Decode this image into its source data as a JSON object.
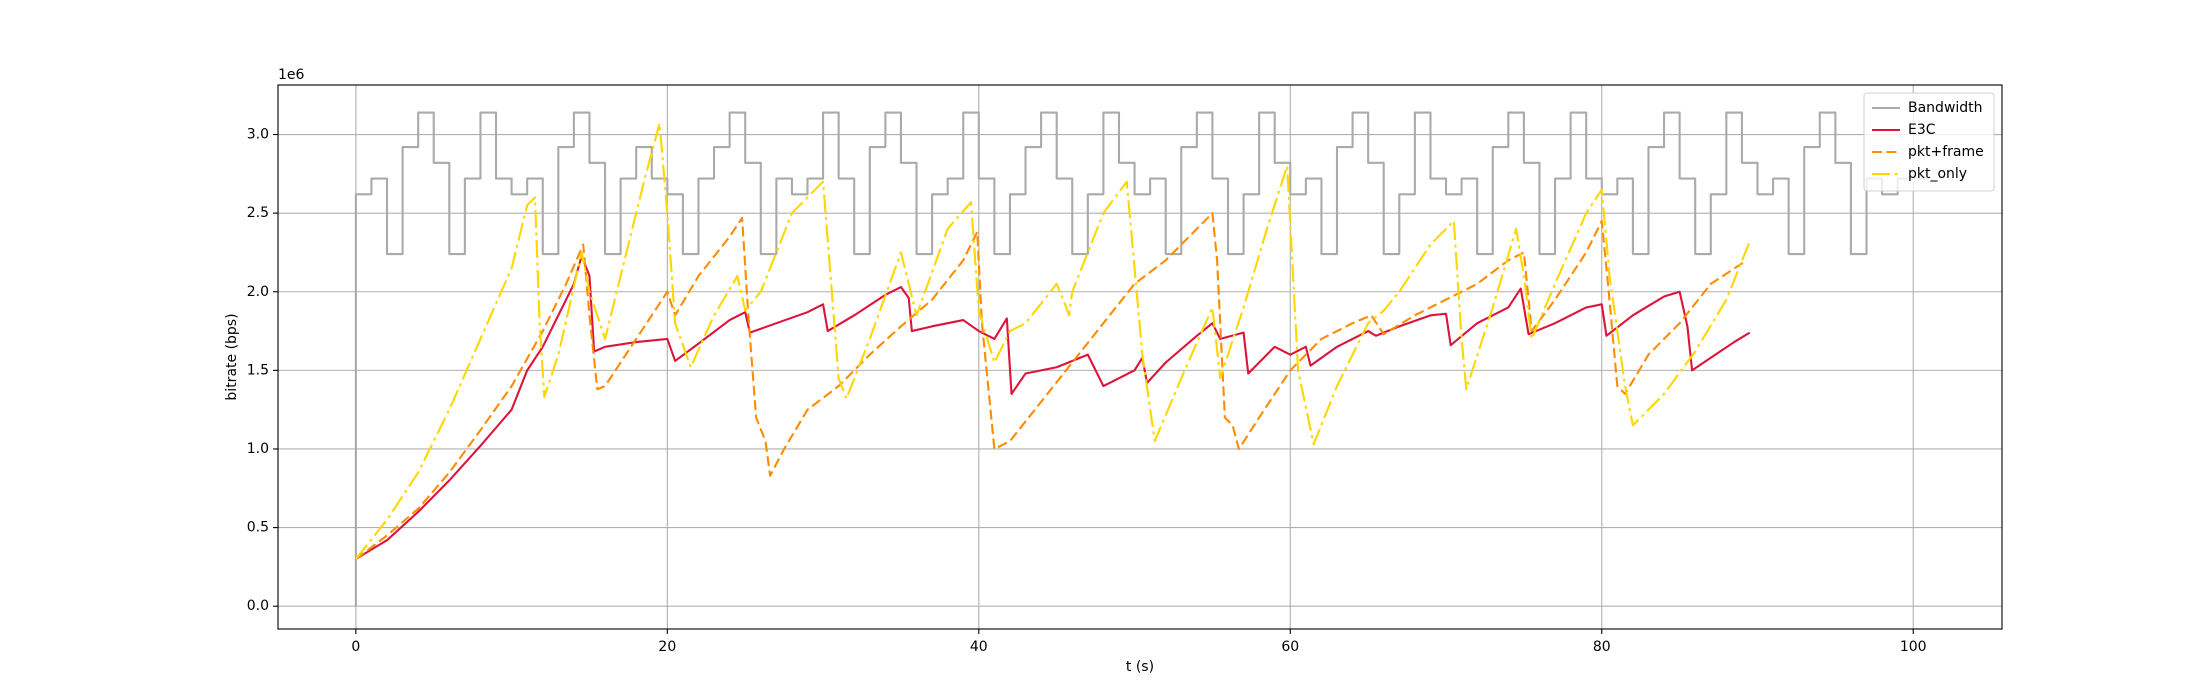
{
  "chart_data": {
    "type": "line",
    "xlabel": "t (s)",
    "ylabel": "bitrate (bps)",
    "y_offset_label": "1e6",
    "xlim": [
      -5,
      105.7
    ],
    "ylim": [
      -145000,
      3315000
    ],
    "xticks": [
      0,
      20,
      40,
      60,
      80,
      100
    ],
    "yticks": [
      {
        "value": 0,
        "label": "0.0"
      },
      {
        "value": 500000,
        "label": "0.5"
      },
      {
        "value": 1000000,
        "label": "1.0"
      },
      {
        "value": 1500000,
        "label": "1.5"
      },
      {
        "value": 2000000,
        "label": "2.0"
      },
      {
        "value": 2500000,
        "label": "2.5"
      },
      {
        "value": 3000000,
        "label": "3.0"
      }
    ],
    "grid": true,
    "legend": "upper right",
    "series": [
      {
        "name": "Bandwidth",
        "color": "#aaaaaa",
        "linestyle": "solid",
        "drawstyle": "steps-post",
        "x": [
          0,
          0,
          1,
          2,
          3,
          4,
          5,
          6,
          7,
          8,
          9,
          10,
          11,
          12,
          13,
          14,
          15,
          16,
          17,
          18,
          19,
          20,
          21,
          22,
          23,
          24,
          25,
          26,
          27,
          28,
          29,
          30,
          31,
          32,
          33,
          34,
          35,
          36,
          37,
          38,
          39,
          40,
          41,
          42,
          43,
          44,
          45,
          46,
          47,
          48,
          49,
          50,
          51,
          52,
          53,
          54,
          55,
          56,
          57,
          58,
          59,
          60,
          61,
          62,
          63,
          64,
          65,
          66,
          67,
          68,
          69,
          70,
          71,
          72,
          73,
          74,
          75,
          76,
          77,
          78,
          79,
          80,
          81,
          82,
          83,
          84,
          85,
          86,
          87,
          88,
          89,
          90,
          91,
          92,
          93,
          94,
          95,
          96,
          97,
          98,
          99,
          100,
          101
        ],
        "values": [
          0,
          2620000,
          2720000,
          2240000,
          2920000,
          3140000,
          2820000,
          2240000,
          2720000,
          3140000,
          2720000,
          2620000,
          2720000,
          2240000,
          2920000,
          3140000,
          2820000,
          2240000,
          2720000,
          2920000,
          2720000,
          2620000,
          2240000,
          2720000,
          2920000,
          3140000,
          2820000,
          2240000,
          2720000,
          2620000,
          2720000,
          3140000,
          2720000,
          2240000,
          2920000,
          3140000,
          2820000,
          2240000,
          2620000,
          2720000,
          3140000,
          2720000,
          2240000,
          2620000,
          2920000,
          3140000,
          2720000,
          2240000,
          2620000,
          3140000,
          2820000,
          2620000,
          2720000,
          2240000,
          2920000,
          3140000,
          2720000,
          2240000,
          2620000,
          3140000,
          2820000,
          2620000,
          2720000,
          2240000,
          2920000,
          3140000,
          2820000,
          2240000,
          2620000,
          3140000,
          2720000,
          2620000,
          2720000,
          2240000,
          2920000,
          3140000,
          2820000,
          2240000,
          2720000,
          3140000,
          2720000,
          2620000,
          2720000,
          2240000,
          2920000,
          3140000,
          2720000,
          2240000,
          2620000,
          3140000,
          2820000,
          2620000,
          2720000,
          2240000,
          2920000,
          3140000,
          2820000,
          2240000,
          2720000,
          2620000,
          2720000,
          2720000,
          2720000
        ]
      },
      {
        "name": "E3C",
        "color": "#dc143c",
        "linestyle": "solid",
        "x": [
          0,
          2,
          4,
          6,
          8,
          10,
          11,
          12,
          13,
          14,
          14.5,
          15,
          15.3,
          16,
          18,
          20,
          20.5,
          22,
          24,
          25,
          25.3,
          27,
          29,
          30,
          30.3,
          32,
          34,
          35,
          35.5,
          35.7,
          37,
          39,
          40,
          41,
          41.8,
          42.1,
          43,
          45,
          47,
          47.5,
          48,
          50,
          50.5,
          50.8,
          52,
          54,
          55,
          55.5,
          57,
          57.3,
          59,
          60,
          61,
          61.3,
          63,
          65,
          65.5,
          67,
          69,
          70,
          70.3,
          72,
          74,
          74.8,
          75.3,
          77,
          79,
          80,
          80.3,
          82,
          84,
          85,
          85.5,
          85.8,
          87,
          88.5,
          89.5
        ],
        "values": [
          300000,
          420000,
          600000,
          800000,
          1020000,
          1250000,
          1500000,
          1650000,
          1850000,
          2050000,
          2230000,
          2100000,
          1620000,
          1650000,
          1680000,
          1700000,
          1560000,
          1670000,
          1820000,
          1870000,
          1740000,
          1800000,
          1870000,
          1920000,
          1750000,
          1850000,
          1980000,
          2030000,
          1960000,
          1750000,
          1780000,
          1820000,
          1750000,
          1700000,
          1830000,
          1350000,
          1480000,
          1520000,
          1600000,
          1500000,
          1400000,
          1500000,
          1580000,
          1420000,
          1550000,
          1720000,
          1800000,
          1700000,
          1740000,
          1480000,
          1650000,
          1600000,
          1650000,
          1530000,
          1650000,
          1750000,
          1720000,
          1780000,
          1850000,
          1860000,
          1660000,
          1800000,
          1900000,
          2020000,
          1730000,
          1800000,
          1900000,
          1920000,
          1720000,
          1850000,
          1970000,
          2000000,
          1780000,
          1500000,
          1580000,
          1680000,
          1740000
        ]
      },
      {
        "name": "pkt+frame",
        "color": "#ff8c00",
        "linestyle": "dashed",
        "x": [
          0,
          2,
          4,
          6,
          8,
          10,
          12,
          13.5,
          14.6,
          15,
          15.5,
          16,
          18,
          20,
          20.5,
          22,
          24,
          24.8,
          25.2,
          25.7,
          26.3,
          26.6,
          27.5,
          29,
          31,
          33,
          35,
          37,
          39,
          39.9,
          40.2,
          41,
          42,
          44,
          46,
          48,
          50,
          52,
          54,
          55,
          55.3,
          55.8,
          56.3,
          56.7,
          58,
          60,
          62,
          64,
          65.2,
          66,
          68,
          70,
          72,
          74,
          75,
          75.5,
          77,
          79,
          80,
          80.4,
          81,
          81.5,
          83,
          85,
          87,
          89,
          89.2
        ],
        "values": [
          300000,
          450000,
          620000,
          850000,
          1120000,
          1400000,
          1750000,
          2050000,
          2300000,
          1850000,
          1380000,
          1400000,
          1700000,
          2000000,
          1850000,
          2100000,
          2350000,
          2470000,
          1850000,
          1200000,
          1050000,
          830000,
          1000000,
          1250000,
          1400000,
          1600000,
          1780000,
          1950000,
          2200000,
          2380000,
          1800000,
          1000000,
          1050000,
          1300000,
          1550000,
          1800000,
          2050000,
          2200000,
          2400000,
          2500000,
          2200000,
          1200000,
          1150000,
          1000000,
          1200000,
          1500000,
          1700000,
          1800000,
          1850000,
          1730000,
          1850000,
          1950000,
          2050000,
          2200000,
          2250000,
          1750000,
          1950000,
          2250000,
          2450000,
          2050000,
          1400000,
          1350000,
          1600000,
          1800000,
          2050000,
          2180000,
          2200000
        ]
      },
      {
        "name": "pkt_only",
        "color": "#ffd700",
        "linestyle": "dashdot",
        "x": [
          0,
          2,
          4,
          6,
          8,
          10,
          11,
          11.5,
          11.8,
          12.1,
          13,
          14.5,
          15,
          16,
          17,
          18.5,
          19.5,
          20,
          20.5,
          21.5,
          23,
          24.5,
          25,
          26,
          28,
          30,
          31,
          31.5,
          33,
          35,
          35.5,
          36,
          38,
          39.5,
          40,
          41,
          42,
          43,
          45,
          45.5,
          45.8,
          46,
          48,
          49.5,
          50.5,
          51.3,
          53,
          55,
          55.5,
          57,
          58.5,
          59.8,
          60.5,
          61.5,
          63,
          65,
          66,
          67,
          69,
          70.5,
          71,
          71.3,
          73,
          74.5,
          75,
          75.5,
          77,
          79,
          80,
          80.5,
          81.5,
          82,
          84,
          86,
          88,
          89.5
        ],
        "values": [
          300000,
          550000,
          850000,
          1250000,
          1700000,
          2150000,
          2550000,
          2600000,
          1800000,
          1330000,
          1600000,
          2250000,
          2000000,
          1700000,
          2100000,
          2700000,
          3070000,
          2500000,
          1800000,
          1520000,
          1850000,
          2100000,
          1880000,
          2000000,
          2500000,
          2700000,
          1450000,
          1320000,
          1700000,
          2250000,
          2050000,
          1850000,
          2400000,
          2570000,
          1880000,
          1550000,
          1750000,
          1800000,
          2050000,
          1930000,
          1850000,
          2000000,
          2500000,
          2700000,
          1600000,
          1050000,
          1450000,
          1900000,
          1450000,
          1900000,
          2400000,
          2800000,
          1500000,
          1030000,
          1400000,
          1800000,
          1880000,
          2000000,
          2300000,
          2450000,
          1700000,
          1380000,
          1900000,
          2400000,
          2100000,
          1700000,
          2050000,
          2500000,
          2650000,
          2100000,
          1400000,
          1150000,
          1350000,
          1620000,
          1950000,
          2320000
        ]
      }
    ]
  }
}
